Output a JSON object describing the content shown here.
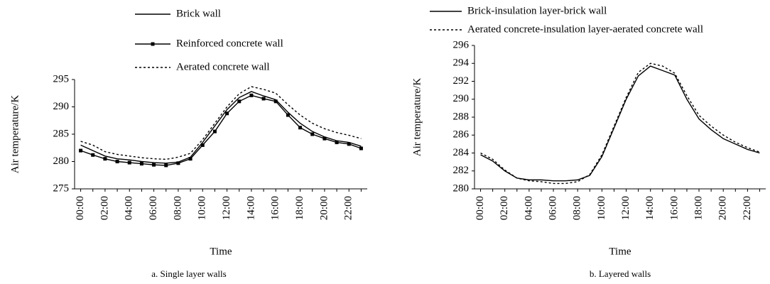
{
  "chart_data": [
    {
      "type": "line",
      "caption": "a. Single layer walls",
      "x_label": "Time",
      "y_label": "Air temperature/K",
      "categories": [
        "00:00",
        null,
        "02:00",
        null,
        "04:00",
        null,
        "06:00",
        null,
        "08:00",
        null,
        "10:00",
        null,
        "12:00",
        null,
        "14:00",
        null,
        "16:00",
        null,
        "18:00",
        null,
        "20:00",
        null,
        "22:00",
        null
      ],
      "ylim": [
        275,
        295
      ],
      "yticks": [
        275,
        280,
        285,
        290,
        295
      ],
      "series": [
        {
          "name": "Brick wall",
          "color": "#000000",
          "style": "solid",
          "values": [
            283,
            282,
            281,
            280.5,
            280.3,
            280,
            279.8,
            279.7,
            279.9,
            280.8,
            283.5,
            286.5,
            289.5,
            291.7,
            292.8,
            292,
            291.3,
            289,
            287,
            285.5,
            284.5,
            283.8,
            283.5,
            282.8
          ]
        },
        {
          "name": "Reinforced concrete wall",
          "color": "#000000",
          "style": "solid",
          "marker": "square",
          "values": [
            282,
            281.2,
            280.5,
            280,
            279.8,
            279.6,
            279.4,
            279.3,
            279.7,
            280.5,
            283,
            285.5,
            288.8,
            291,
            292.1,
            291.5,
            291,
            288.5,
            286.2,
            285,
            284.2,
            283.5,
            283.2,
            282.4
          ]
        },
        {
          "name": "Aerated concrete wall",
          "color": "#000000",
          "style": "dotted",
          "values": [
            283.7,
            283,
            281.8,
            281.3,
            281,
            280.7,
            280.5,
            280.4,
            280.8,
            281.5,
            284,
            287,
            290,
            292.4,
            293.7,
            293.2,
            292.5,
            290.4,
            288.5,
            287,
            286,
            285.3,
            284.8,
            284.2
          ]
        }
      ]
    },
    {
      "type": "line",
      "caption": "b. Layered walls",
      "x_label": "Time",
      "y_label": "Air temperature/K",
      "categories": [
        "00:00",
        null,
        "02:00",
        null,
        "04:00",
        null,
        "06:00",
        null,
        "08:00",
        null,
        "10:00",
        null,
        "12:00",
        null,
        "14:00",
        null,
        "16:00",
        null,
        "18:00",
        null,
        "20:00",
        null,
        "22:00",
        null
      ],
      "ylim": [
        280,
        296
      ],
      "yticks": [
        280,
        282,
        284,
        286,
        288,
        290,
        292,
        294,
        296
      ],
      "series": [
        {
          "name": "Brick-insulation layer-brick wall",
          "color": "#000000",
          "style": "solid",
          "values": [
            283.8,
            283.1,
            282,
            281.2,
            281,
            281,
            280.9,
            280.9,
            281,
            281.5,
            283.6,
            286.8,
            290,
            292.6,
            293.7,
            293.2,
            292.7,
            290,
            287.8,
            286.6,
            285.6,
            285,
            284.4,
            284
          ]
        },
        {
          "name": "Aerated concrete-insulation layer-aerated concrete wall",
          "color": "#000000",
          "style": "dotted",
          "values": [
            284,
            283.3,
            282.1,
            281.2,
            280.9,
            280.8,
            280.6,
            280.6,
            280.8,
            281.6,
            283.8,
            287,
            290.2,
            293,
            294,
            293.7,
            292.9,
            290.4,
            288.2,
            287,
            286,
            285.2,
            284.6,
            284.1
          ]
        }
      ]
    }
  ]
}
